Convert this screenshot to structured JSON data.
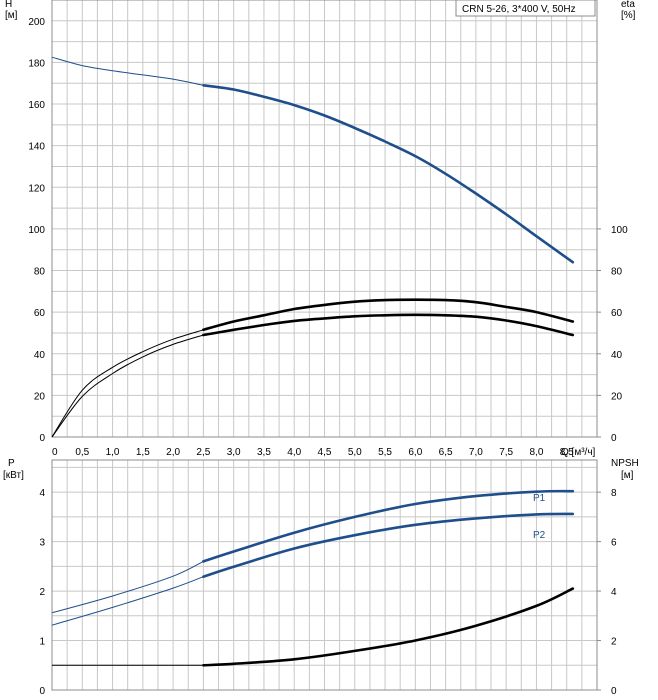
{
  "chart_data": [
    {
      "type": "line",
      "title": "CRN 5-26, 3*400 V, 50Hz",
      "xlabel": "Q [м³/ч]",
      "ylabel_left": [
        "H",
        "[м]"
      ],
      "ylabel_right": [
        "eta",
        "[%]"
      ],
      "x_ticks": [
        "0",
        "0,5",
        "1,0",
        "1,5",
        "2,0",
        "2,5",
        "3,0",
        "3,5",
        "4,0",
        "4,5",
        "5,0",
        "5,5",
        "6,0",
        "6,5",
        "7,0",
        "7,5",
        "8,0",
        "8,5"
      ],
      "xlim": [
        0,
        9.0
      ],
      "ylim_left": [
        0,
        210
      ],
      "ylim_right": [
        0,
        210
      ],
      "y_ticks_left": [
        0,
        20,
        40,
        60,
        80,
        100,
        120,
        140,
        160,
        180,
        200
      ],
      "y_ticks_right": [
        0,
        20,
        40,
        60,
        80,
        100
      ],
      "grid": true,
      "series": [
        {
          "name": "H",
          "axis": "left",
          "color": "#1f4e8c",
          "x": [
            0,
            0.5,
            1.0,
            1.5,
            2.0,
            2.5,
            3.0,
            3.5,
            4.0,
            4.5,
            5.0,
            5.5,
            6.0,
            6.5,
            7.0,
            7.5,
            8.0,
            8.6
          ],
          "y": [
            182.5,
            178.5,
            176,
            174,
            172,
            169,
            167,
            163.5,
            159.5,
            154.5,
            148.5,
            142,
            135,
            126.5,
            117,
            107,
            96.5,
            84
          ],
          "bold_from": 2.5
        },
        {
          "name": "eta_total",
          "axis": "right",
          "color": "#000000",
          "x": [
            0,
            0.5,
            1.0,
            1.5,
            2.0,
            2.5,
            3.0,
            3.5,
            4.0,
            4.5,
            5.0,
            5.5,
            6.0,
            6.5,
            7.0,
            7.5,
            8.0,
            8.6
          ],
          "y": [
            0,
            19.5,
            30.5,
            38.5,
            44.5,
            49,
            51.5,
            53.8,
            55.8,
            57,
            58,
            58.5,
            58.7,
            58.5,
            57.8,
            56,
            53.3,
            49
          ],
          "bold_from": 2.5
        },
        {
          "name": "eta_pump",
          "axis": "right",
          "color": "#000000",
          "x": [
            0,
            0.5,
            1.0,
            1.5,
            2.0,
            2.5,
            3.0,
            3.5,
            4.0,
            4.5,
            5.0,
            5.5,
            6.0,
            6.5,
            7.0,
            7.5,
            8.0,
            8.6
          ],
          "y": [
            0,
            22.5,
            33.5,
            41,
            47,
            51.5,
            55.5,
            58.5,
            61.5,
            63.5,
            65,
            65.8,
            66,
            65.8,
            64.8,
            62.5,
            60,
            55.5
          ],
          "bold_from": 2.5
        }
      ]
    },
    {
      "type": "line",
      "xlabel": "Q [м³/ч]",
      "ylabel_left": [
        "P",
        "[кВт]"
      ],
      "ylabel_right": [
        "NPSH",
        "[м]"
      ],
      "xlim": [
        0,
        9.0
      ],
      "ylim_left": [
        0,
        4.65
      ],
      "ylim_right": [
        0,
        9.3
      ],
      "y_ticks_left": [
        0,
        1,
        2,
        3,
        4
      ],
      "y_ticks_right": [
        0,
        2,
        4,
        6,
        8
      ],
      "grid": true,
      "series": [
        {
          "name": "P1",
          "axis": "left",
          "color": "#1f4e8c",
          "x": [
            0,
            1.0,
            2.0,
            2.5,
            3.0,
            4.0,
            5.0,
            6.0,
            7.0,
            8.0,
            8.6
          ],
          "y": [
            1.56,
            1.9,
            2.3,
            2.6,
            2.8,
            3.18,
            3.5,
            3.76,
            3.92,
            4.01,
            4.02
          ],
          "bold_from": 2.5
        },
        {
          "name": "P2",
          "axis": "left",
          "color": "#1f4e8c",
          "x": [
            0,
            1.0,
            2.0,
            2.5,
            3.0,
            4.0,
            5.0,
            6.0,
            7.0,
            8.0,
            8.6
          ],
          "y": [
            1.31,
            1.67,
            2.06,
            2.29,
            2.49,
            2.86,
            3.13,
            3.34,
            3.47,
            3.55,
            3.56
          ],
          "bold_from": 2.5
        },
        {
          "name": "NPSH",
          "axis": "right",
          "color": "#000000",
          "x": [
            0,
            1.0,
            2.0,
            2.5,
            3.0,
            4.0,
            5.0,
            6.0,
            7.0,
            8.0,
            8.6
          ],
          "y": [
            1.0,
            1.0,
            1.0,
            1.0,
            1.06,
            1.24,
            1.58,
            2.0,
            2.6,
            3.4,
            4.1
          ],
          "bold_from": 2.5
        }
      ]
    }
  ]
}
